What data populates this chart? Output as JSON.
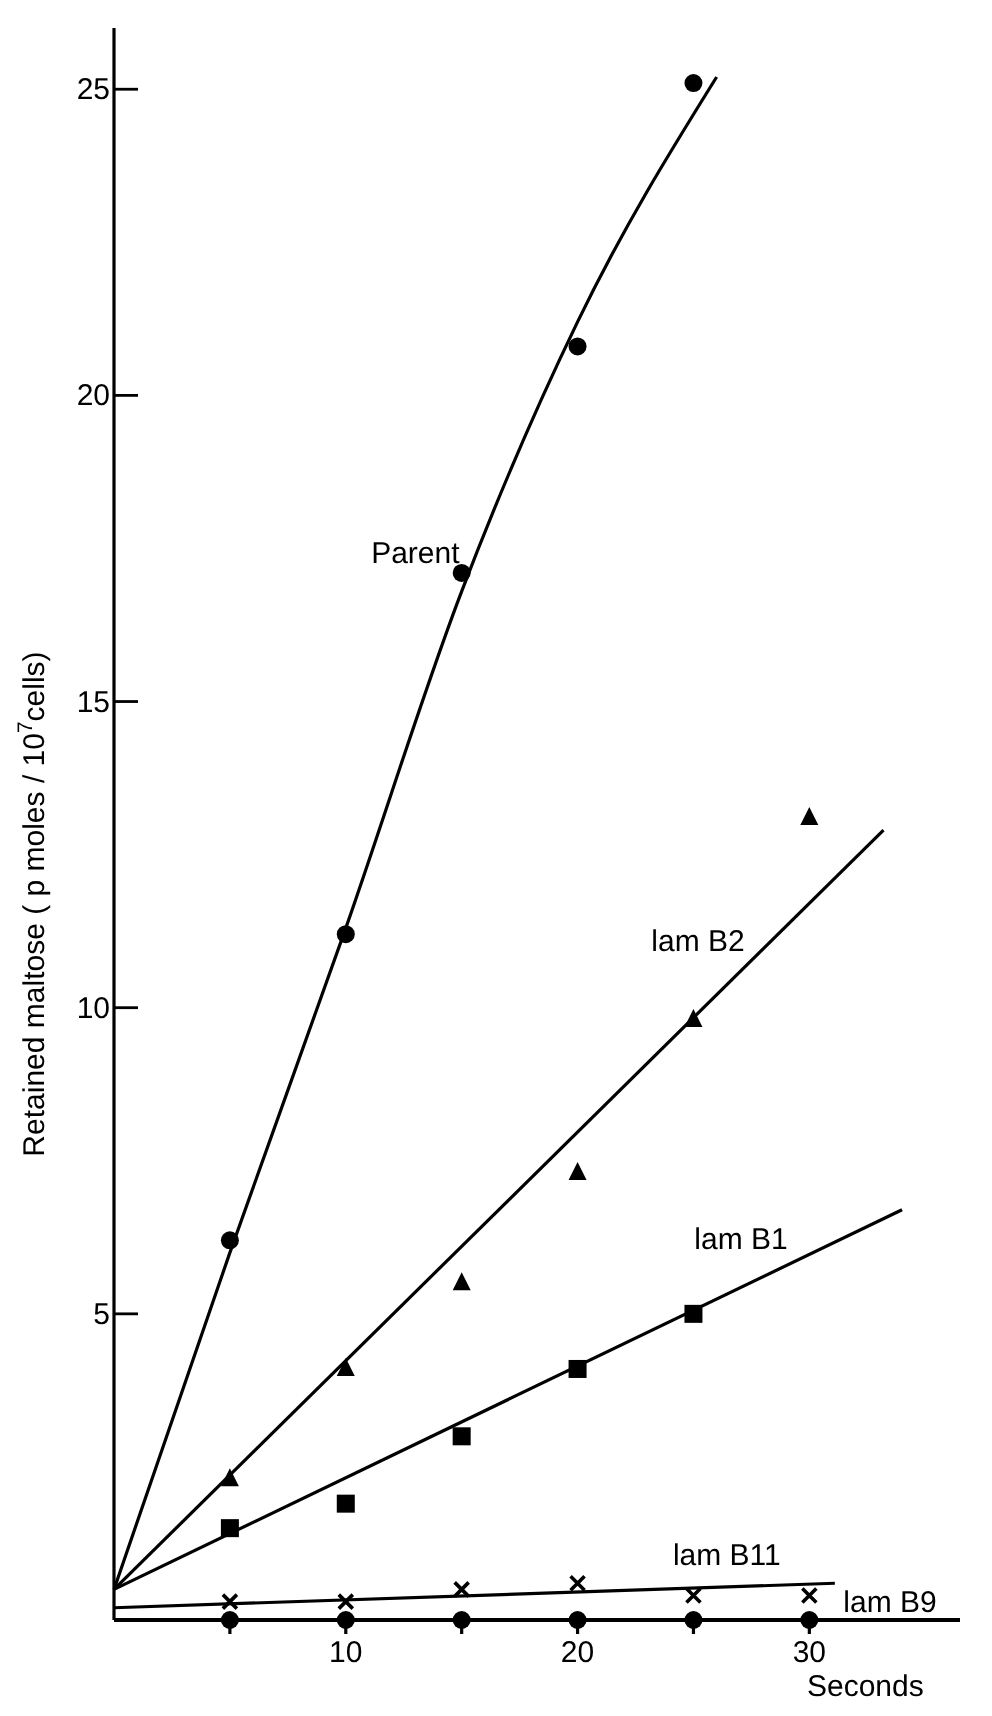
{
  "chart_data": {
    "type": "scatter",
    "xlabel": "Seconds",
    "ylabel": "Retained maltose ( p moles / 10$^{7}$cells)",
    "xlim": [
      0,
      36.5
    ],
    "ylim": [
      0,
      26
    ],
    "xticks": [
      {
        "value": 5,
        "label": null
      },
      10,
      {
        "value": 15,
        "label": null
      },
      20,
      {
        "value": 25,
        "label": null
      },
      30
    ],
    "yticks": [
      5,
      10,
      15,
      20,
      25
    ],
    "grid": false,
    "series": [
      {
        "name": "Parent",
        "marker": "circle",
        "color": "#000000",
        "x": [
          5,
          10,
          15,
          20,
          25
        ],
        "values": [
          6.2,
          11.2,
          17.1,
          20.8,
          25.1
        ]
      },
      {
        "type": "line",
        "marker": "none",
        "color": "#000000",
        "x": [
          0,
          5,
          10,
          15,
          20,
          26
        ],
        "values": [
          0.5,
          6.0,
          11.3,
          16.8,
          21.2,
          25.2
        ]
      },
      {
        "name": "lam B2",
        "marker": "triangle",
        "color": "#000000",
        "x": [
          5,
          10,
          15,
          20,
          25,
          30
        ],
        "values": [
          2.3,
          4.1,
          5.5,
          7.3,
          9.8,
          13.1
        ]
      },
      {
        "type": "line",
        "marker": "none",
        "color": "#000000",
        "x": [
          0,
          33.2
        ],
        "values": [
          0.5,
          12.9
        ]
      },
      {
        "name": "lam B1",
        "marker": "square",
        "color": "#000000",
        "x": [
          5,
          10,
          15,
          20,
          25
        ],
        "values": [
          1.5,
          1.9,
          3.0,
          4.1,
          5.0
        ]
      },
      {
        "type": "line",
        "marker": "none",
        "color": "#000000",
        "x": [
          0,
          34
        ],
        "values": [
          0.5,
          6.7
        ]
      },
      {
        "name": "lam B11",
        "marker": "cross",
        "color": "#000000",
        "x": [
          5,
          10,
          15,
          20,
          25,
          30
        ],
        "values": [
          0.3,
          0.3,
          0.5,
          0.6,
          0.4,
          0.4
        ]
      },
      {
        "type": "line",
        "marker": "none",
        "color": "#000000",
        "x": [
          0,
          31.1
        ],
        "values": [
          0.2,
          0.6
        ]
      },
      {
        "name": "lam B9",
        "marker": "circle",
        "color": "#000000",
        "x": [
          5,
          10,
          15,
          20,
          25,
          30
        ],
        "values": [
          0,
          0,
          0,
          0,
          0,
          0
        ]
      }
    ]
  }
}
